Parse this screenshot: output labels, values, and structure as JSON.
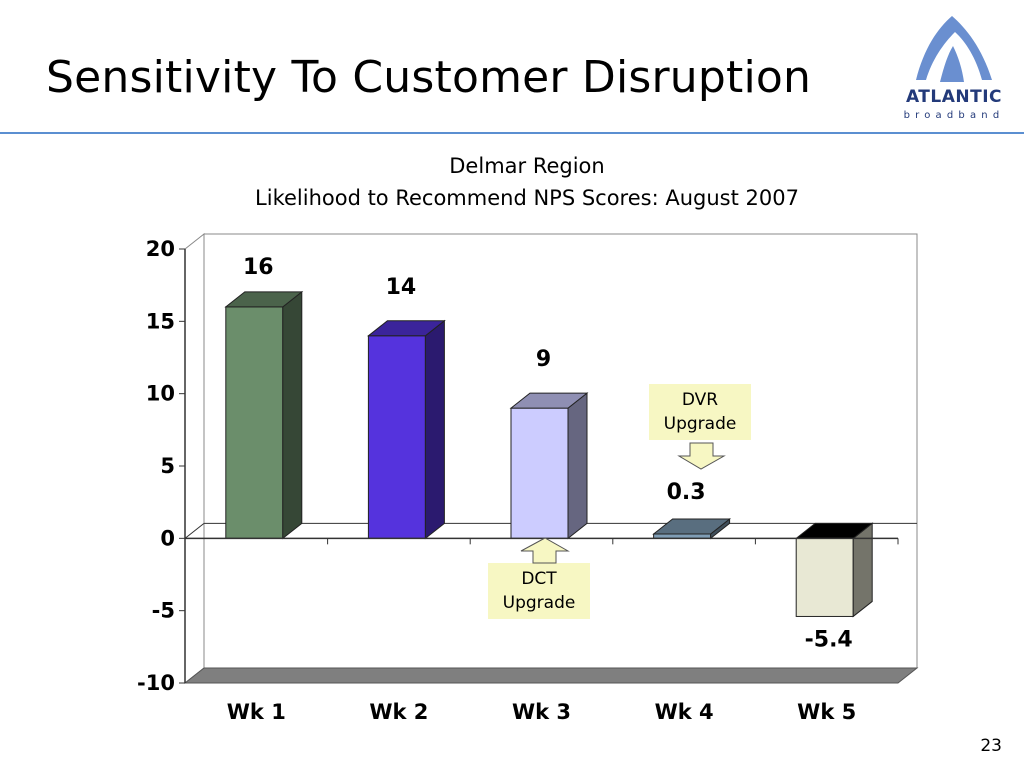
{
  "slide": {
    "title": "Sensitivity To Customer Disruption",
    "page_number": "23"
  },
  "logo": {
    "word": "ATLANTIC",
    "subtitle": "broadband",
    "colors": {
      "arch": "#6a8fd0",
      "word": "#233a7a"
    }
  },
  "chart_data": {
    "type": "bar",
    "title": "Delmar Region",
    "subtitle": "Likelihood to Recommend NPS Scores: August 2007",
    "categories": [
      "Wk 1",
      "Wk 2",
      "Wk 3",
      "Wk 4",
      "Wk 5"
    ],
    "values": [
      16,
      14,
      9,
      0.3,
      -5.4
    ],
    "data_labels": [
      "16",
      "14",
      "9",
      "0.3",
      "-5.4"
    ],
    "bar_colors": [
      "#6b8e6b",
      "#5533dd",
      "#ccccff",
      "#7f9db5",
      "#e8e8d4"
    ],
    "ylim": [
      -10,
      20
    ],
    "yticks": [
      20,
      15,
      10,
      5,
      0,
      -5,
      -10
    ],
    "ytick_labels": [
      "20",
      "15",
      "10",
      "5",
      "0",
      "-5",
      "-10"
    ],
    "xlabel": "",
    "ylabel": "",
    "grid": false,
    "three_d": true
  },
  "callouts": [
    {
      "text": [
        "DVR",
        "Upgrade"
      ],
      "category": "Wk 4",
      "arrow": "down"
    },
    {
      "text": [
        "DCT",
        "Upgrade"
      ],
      "category": "Wk 3",
      "arrow": "up"
    }
  ]
}
